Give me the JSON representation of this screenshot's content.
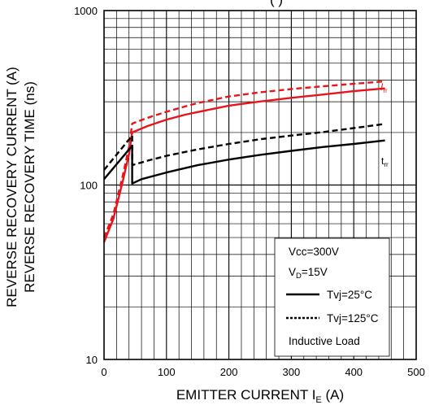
{
  "chart_data": {
    "type": "line",
    "title": "",
    "title_partial": "(       )",
    "xlabel": "EMITTER CURRENT I",
    "xlabel_sub": "E",
    "xlabel_unit": " (A)",
    "ylabel_lines": [
      "REVERSE RECOVERY CURRENT (A)",
      "REVERSE RECOVERY TIME (ns)"
    ],
    "xlim": [
      0,
      500
    ],
    "ylim": [
      10,
      1000
    ],
    "y_scale": "log",
    "grid": true,
    "x_ticks": [
      0,
      100,
      200,
      300,
      400,
      500
    ],
    "x_tick_labels": [
      "0",
      "100",
      "200",
      "300",
      "400",
      "500"
    ],
    "y_ticks": [
      10,
      100,
      1000
    ],
    "y_tick_labels": [
      "10",
      "100",
      "1000"
    ],
    "series": [
      {
        "name": "Irr",
        "label_main": "I",
        "label_sub": "rr",
        "color": "#e8141b",
        "temperature": "Tvj=25°C",
        "points": [
          [
            0,
            47
          ],
          [
            15,
            64
          ],
          [
            30,
            105
          ],
          [
            40,
            150
          ],
          [
            45,
            200
          ],
          [
            70,
            218
          ],
          [
            100,
            237
          ],
          [
            130,
            253
          ],
          [
            150,
            262
          ],
          [
            200,
            285
          ],
          [
            250,
            301
          ],
          [
            300,
            316
          ],
          [
            350,
            330
          ],
          [
            400,
            345
          ],
          [
            450,
            358
          ]
        ]
      },
      {
        "name": "Irr",
        "color": "#e8141b",
        "temperature": "Tvj=125°C",
        "points": [
          [
            0,
            50
          ],
          [
            15,
            68
          ],
          [
            30,
            113
          ],
          [
            40,
            165
          ],
          [
            45,
            225
          ],
          [
            70,
            243
          ],
          [
            100,
            263
          ],
          [
            130,
            282
          ],
          [
            150,
            295
          ],
          [
            200,
            322
          ],
          [
            250,
            340
          ],
          [
            300,
            355
          ],
          [
            350,
            368
          ],
          [
            400,
            380
          ],
          [
            450,
            393
          ]
        ]
      },
      {
        "name": "trr",
        "label_main": "t",
        "label_sub": "rr",
        "color": "#000000",
        "temperature": "Tvj=25°C",
        "points": [
          [
            0,
            108
          ],
          [
            45,
            168
          ],
          [
            45,
            102
          ],
          [
            60,
            108
          ],
          [
            100,
            118
          ],
          [
            150,
            130
          ],
          [
            200,
            140
          ],
          [
            250,
            149
          ],
          [
            300,
            157
          ],
          [
            350,
            165
          ],
          [
            400,
            172
          ],
          [
            450,
            180
          ]
        ]
      },
      {
        "name": "trr",
        "color": "#000000",
        "temperature": "Tvj=125°C",
        "points": [
          [
            0,
            122
          ],
          [
            45,
            192
          ],
          [
            45,
            130
          ],
          [
            70,
            138
          ],
          [
            100,
            147
          ],
          [
            150,
            160
          ],
          [
            200,
            172
          ],
          [
            250,
            183
          ],
          [
            300,
            192
          ],
          [
            350,
            201
          ],
          [
            400,
            212
          ],
          [
            450,
            224
          ]
        ]
      }
    ],
    "legend": {
      "position": "bottom-right",
      "conditions": [
        "Vcc=300V"
      ],
      "vd_main": "V",
      "vd_sub": "D",
      "vd_rest": "=15V",
      "entries": [
        {
          "label": "Tvj=25°C",
          "style": "solid"
        },
        {
          "label": "Tvj=125°C",
          "style": "dotted"
        }
      ],
      "note": "Inductive Load"
    }
  }
}
